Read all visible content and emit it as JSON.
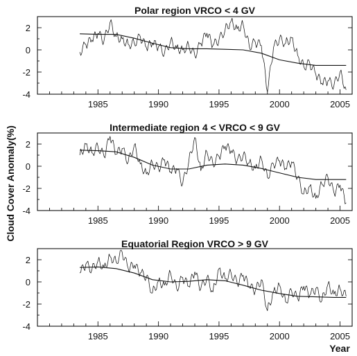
{
  "figure": {
    "ylabel": "Cloud Cover Anomaly(%)",
    "xlabel": "Year"
  },
  "chart_data": [
    {
      "type": "line",
      "title": "Polar region VRCO < 4 GV",
      "xlim": [
        1980,
        2006
      ],
      "ylim": [
        -4,
        3
      ],
      "xticks": [
        1985,
        1990,
        1995,
        2000,
        2005
      ],
      "yticks": [
        -4,
        -2,
        0,
        2
      ],
      "series": [
        {
          "style": "monthly",
          "x": [
            1983.5,
            1984,
            1984.5,
            1985,
            1985.5,
            1986,
            1986.5,
            1987,
            1987.5,
            1988,
            1988.5,
            1989,
            1989.5,
            1990,
            1990.5,
            1991,
            1991.5,
            1992,
            1992.5,
            1993,
            1993.5,
            1994,
            1994.5,
            1995,
            1995.5,
            1996,
            1996.5,
            1997,
            1997.5,
            1998,
            1998.5,
            1999,
            1999.5,
            2000,
            2000.5,
            2001,
            2001.5,
            2002,
            2002.5,
            2003,
            2003.5,
            2004,
            2004.5,
            2005,
            2005.5
          ],
          "y": [
            -0.2,
            0.5,
            0.9,
            1.5,
            0.8,
            2.5,
            1.2,
            1.0,
            0.5,
            0.6,
            1.2,
            0.2,
            0.6,
            0.3,
            -0.3,
            0.8,
            0.2,
            0.0,
            0.4,
            -0.5,
            0.6,
            1.5,
            0.4,
            0.9,
            1.8,
            2.6,
            1.9,
            2.3,
            0.3,
            0.7,
            0.4,
            -3.8,
            0.2,
            1.0,
            0.6,
            1.1,
            -0.5,
            -1.5,
            -1.2,
            -2.2,
            -3.0,
            -2.8,
            -3.2,
            -2.0,
            -3.6
          ]
        },
        {
          "style": "trend",
          "x": [
            1983.5,
            1985,
            1986.5,
            1988,
            1989.5,
            1991,
            1992.5,
            1994,
            1995.5,
            1997,
            1998.5,
            2000,
            2001.5,
            2003,
            2004.5,
            2005.5
          ],
          "y": [
            1.45,
            1.4,
            1.4,
            1.05,
            0.6,
            0.2,
            0.1,
            0.1,
            0.05,
            0.0,
            -0.3,
            -0.9,
            -1.2,
            -1.4,
            -1.4,
            -1.4
          ]
        }
      ]
    },
    {
      "type": "line",
      "title": "Intermediate region 4 < VRCO < 9 GV",
      "xlim": [
        1980,
        2006
      ],
      "ylim": [
        -4,
        3
      ],
      "xticks": [
        1985,
        1990,
        1995,
        2000,
        2005
      ],
      "yticks": [
        -4,
        -2,
        0,
        2
      ],
      "series": [
        {
          "style": "monthly",
          "x": [
            1983.5,
            1984,
            1984.5,
            1985,
            1985.5,
            1986,
            1986.5,
            1987,
            1987.5,
            1988,
            1988.5,
            1989,
            1989.5,
            1990,
            1990.5,
            1991,
            1991.5,
            1992,
            1992.5,
            1993,
            1993.5,
            1994,
            1994.5,
            1995,
            1995.5,
            1996,
            1996.5,
            1997,
            1997.5,
            1998,
            1998.5,
            1999,
            1999.5,
            2000,
            2000.5,
            2001,
            2001.5,
            2002,
            2002.5,
            2003,
            2003.5,
            2004,
            2004.5,
            2005,
            2005.5
          ],
          "y": [
            1.0,
            2.0,
            1.2,
            1.8,
            0.9,
            2.7,
            1.1,
            1.6,
            0.4,
            1.9,
            0.2,
            -0.7,
            0.3,
            -0.2,
            0.6,
            -0.5,
            -0.2,
            -1.6,
            0.4,
            2.6,
            -0.4,
            1.3,
            0.2,
            0.9,
            1.8,
            1.4,
            0.5,
            1.0,
            0.3,
            -0.2,
            0.7,
            -1.0,
            0.2,
            0.5,
            -0.2,
            0.4,
            -1.0,
            -2.5,
            -1.8,
            -2.9,
            -1.6,
            -1.0,
            -2.4,
            -1.7,
            -3.3
          ]
        },
        {
          "style": "trend",
          "x": [
            1983.5,
            1985,
            1986.5,
            1988,
            1989.5,
            1991,
            1992.5,
            1994,
            1995.5,
            1997,
            1998.5,
            2000,
            2001.5,
            2003,
            2004.5,
            2005.5
          ],
          "y": [
            1.45,
            1.4,
            1.3,
            0.8,
            0.1,
            -0.25,
            -0.25,
            0.1,
            0.2,
            0.1,
            -0.2,
            -0.6,
            -1.0,
            -1.2,
            -1.2,
            -1.2
          ]
        }
      ]
    },
    {
      "type": "line",
      "title": "Equatorial Region VRCO > 9 GV",
      "xlim": [
        1980,
        2006
      ],
      "ylim": [
        -4,
        3
      ],
      "xticks": [
        1985,
        1990,
        1995,
        2000,
        2005
      ],
      "yticks": [
        -4,
        -2,
        0,
        2
      ],
      "series": [
        {
          "style": "monthly",
          "x": [
            1983.5,
            1984,
            1984.5,
            1985,
            1985.5,
            1986,
            1986.5,
            1987,
            1987.5,
            1988,
            1988.5,
            1989,
            1989.5,
            1990,
            1990.5,
            1991,
            1991.5,
            1992,
            1992.5,
            1993,
            1993.5,
            1994,
            1994.5,
            1995,
            1995.5,
            1996,
            1996.5,
            1997,
            1997.5,
            1998,
            1998.5,
            1999,
            1999.5,
            2000,
            2000.5,
            2001,
            2001.5,
            2002,
            2002.5,
            2003,
            2003.5,
            2004,
            2004.5,
            2005,
            2005.5
          ],
          "y": [
            0.8,
            1.6,
            1.1,
            1.9,
            1.3,
            2.3,
            1.8,
            2.7,
            1.2,
            1.5,
            0.8,
            0.5,
            -1.0,
            0.1,
            -0.3,
            0.8,
            -0.6,
            0.4,
            -0.4,
            0.9,
            -0.6,
            0.4,
            -0.9,
            1.2,
            0.3,
            0.8,
            -0.1,
            0.6,
            -0.4,
            -0.8,
            0.2,
            -2.6,
            -0.9,
            -0.3,
            -1.8,
            -0.8,
            -1.5,
            -0.4,
            -1.2,
            -0.6,
            -1.7,
            -0.2,
            -1.1,
            -0.6,
            -1.3
          ]
        },
        {
          "style": "trend",
          "x": [
            1983.5,
            1985,
            1986.5,
            1988,
            1989.5,
            1991,
            1992.5,
            1994,
            1995.5,
            1997,
            1998.5,
            2000,
            2001.5,
            2003,
            2004.5,
            2005.5
          ],
          "y": [
            1.3,
            1.35,
            1.2,
            0.8,
            0.2,
            0.0,
            0.05,
            0.2,
            0.1,
            -0.3,
            -0.75,
            -1.05,
            -1.3,
            -1.35,
            -1.4,
            -1.4
          ]
        }
      ]
    }
  ]
}
